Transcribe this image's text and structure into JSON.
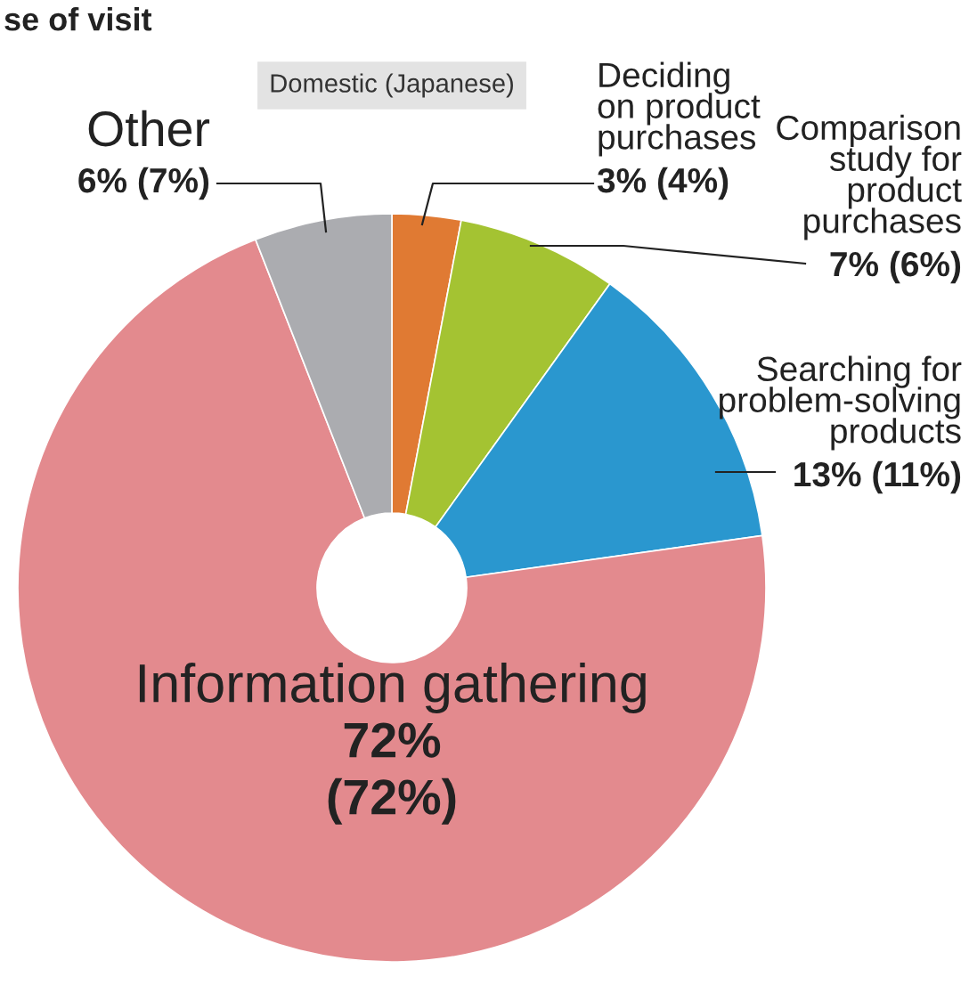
{
  "chart_data": {
    "type": "donut",
    "title": "se of visit",
    "subtitle": "Domestic (Japanese)",
    "categories": [
      "Deciding on product purchases",
      "Comparison study for product purchases",
      "Searching for problem-solving products",
      "Information gathering",
      "Other"
    ],
    "values": [
      3,
      7,
      13,
      72,
      6
    ],
    "colors": [
      "#e07a33",
      "#a4c332",
      "#2a97cf",
      "#e38a8e",
      "#abacb0"
    ],
    "value_labels": [
      "3% (4%)",
      "7% (6%)",
      "13% (11%)",
      "72% (72%)",
      "6% (7%)"
    ],
    "legend": false
  }
}
